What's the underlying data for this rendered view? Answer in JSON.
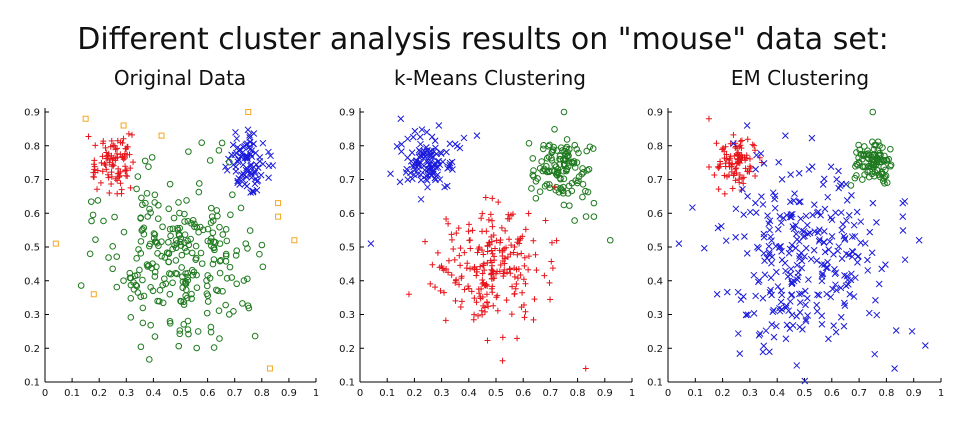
{
  "title": "Different cluster analysis results on \"mouse\" data set:",
  "colors": {
    "red": "#e8141a",
    "blue": "#1a1adc",
    "green": "#1f7a1f",
    "orange": "#f5a623"
  },
  "chart_data": [
    {
      "type": "scatter",
      "title": "Original Data",
      "xlim": [
        0,
        1
      ],
      "ylim": [
        0.1,
        0.9
      ],
      "xticks": [
        "0",
        "0.1",
        "0.2",
        "0.3",
        "0.4",
        "0.5",
        "0.6",
        "0.7",
        "0.8",
        "0.9",
        "1"
      ],
      "yticks": [
        "0.1",
        "0.2",
        "0.3",
        "0.4",
        "0.5",
        "0.6",
        "0.7",
        "0.8",
        "0.9"
      ],
      "grid": false,
      "series": [
        {
          "marker": "plus",
          "color": "#e8141a",
          "cluster": {
            "cx": 0.25,
            "cy": 0.75,
            "sx": 0.04,
            "sy": 0.04,
            "n": 95
          }
        },
        {
          "marker": "cross",
          "color": "#1a1adc",
          "cluster": {
            "cx": 0.75,
            "cy": 0.75,
            "sx": 0.04,
            "sy": 0.04,
            "n": 90
          }
        },
        {
          "marker": "circle",
          "color": "#1f7a1f",
          "cluster": {
            "cx": 0.5,
            "cy": 0.48,
            "sx": 0.13,
            "sy": 0.12,
            "n": 270
          }
        },
        {
          "marker": "square",
          "color": "#f5a623",
          "points": [
            [
              0.15,
              0.88
            ],
            [
              0.29,
              0.86
            ],
            [
              0.43,
              0.83
            ],
            [
              0.75,
              0.9
            ],
            [
              0.04,
              0.51
            ],
            [
              0.18,
              0.36
            ],
            [
              0.86,
              0.63
            ],
            [
              0.86,
              0.59
            ],
            [
              0.92,
              0.52
            ],
            [
              0.83,
              0.14
            ]
          ]
        }
      ]
    },
    {
      "type": "scatter",
      "title": "k-Means Clustering",
      "xlim": [
        0,
        1
      ],
      "ylim": [
        0.1,
        0.9
      ],
      "xticks": [
        "0",
        "0.1",
        "0.2",
        "0.3",
        "0.4",
        "0.5",
        "0.6",
        "0.7",
        "0.8",
        "0.9",
        "1"
      ],
      "yticks": [
        "0.1",
        "0.2",
        "0.3",
        "0.4",
        "0.5",
        "0.6",
        "0.7",
        "0.8",
        "0.9"
      ],
      "grid": false,
      "series": [
        {
          "marker": "cross",
          "color": "#1a1adc",
          "cluster": {
            "cx": 0.25,
            "cy": 0.75,
            "sx": 0.045,
            "sy": 0.045,
            "n": 110
          }
        },
        {
          "marker": "circle",
          "color": "#1f7a1f",
          "cluster": {
            "cx": 0.74,
            "cy": 0.73,
            "sx": 0.05,
            "sy": 0.05,
            "n": 120
          }
        },
        {
          "marker": "plus",
          "color": "#e8141a",
          "cluster": {
            "cx": 0.49,
            "cy": 0.44,
            "sx": 0.1,
            "sy": 0.09,
            "n": 230
          }
        },
        {
          "marker": "cross",
          "color": "#1a1adc",
          "points": [
            [
              0.15,
              0.88
            ],
            [
              0.29,
              0.86
            ],
            [
              0.43,
              0.83
            ],
            [
              0.04,
              0.51
            ]
          ]
        },
        {
          "marker": "circle",
          "color": "#1f7a1f",
          "points": [
            [
              0.75,
              0.9
            ],
            [
              0.86,
              0.63
            ],
            [
              0.86,
              0.59
            ],
            [
              0.92,
              0.52
            ]
          ]
        },
        {
          "marker": "plus",
          "color": "#e8141a",
          "points": [
            [
              0.18,
              0.36
            ],
            [
              0.83,
              0.14
            ]
          ]
        }
      ]
    },
    {
      "type": "scatter",
      "title": "EM Clustering",
      "xlim": [
        0,
        1
      ],
      "ylim": [
        0.1,
        0.9
      ],
      "xticks": [
        "0",
        "0.1",
        "0.2",
        "0.3",
        "0.4",
        "0.5",
        "0.6",
        "0.7",
        "0.8",
        "0.9",
        "1"
      ],
      "yticks": [
        "0.1",
        "0.2",
        "0.3",
        "0.4",
        "0.5",
        "0.6",
        "0.7",
        "0.8",
        "0.9"
      ],
      "grid": false,
      "series": [
        {
          "marker": "plus",
          "color": "#e8141a",
          "cluster": {
            "cx": 0.25,
            "cy": 0.75,
            "sx": 0.035,
            "sy": 0.035,
            "n": 95
          }
        },
        {
          "marker": "circle",
          "color": "#1f7a1f",
          "cluster": {
            "cx": 0.75,
            "cy": 0.75,
            "sx": 0.035,
            "sy": 0.035,
            "n": 95
          }
        },
        {
          "marker": "cross",
          "color": "#1a1adc",
          "cluster": {
            "cx": 0.5,
            "cy": 0.48,
            "sx": 0.14,
            "sy": 0.13,
            "n": 300
          }
        },
        {
          "marker": "plus",
          "color": "#e8141a",
          "points": [
            [
              0.15,
              0.88
            ]
          ]
        },
        {
          "marker": "circle",
          "color": "#1f7a1f",
          "points": [
            [
              0.75,
              0.9
            ]
          ]
        },
        {
          "marker": "cross",
          "color": "#1a1adc",
          "points": [
            [
              0.29,
              0.86
            ],
            [
              0.43,
              0.83
            ],
            [
              0.04,
              0.51
            ],
            [
              0.18,
              0.36
            ],
            [
              0.86,
              0.63
            ],
            [
              0.86,
              0.59
            ],
            [
              0.92,
              0.52
            ],
            [
              0.83,
              0.14
            ]
          ]
        }
      ]
    }
  ]
}
